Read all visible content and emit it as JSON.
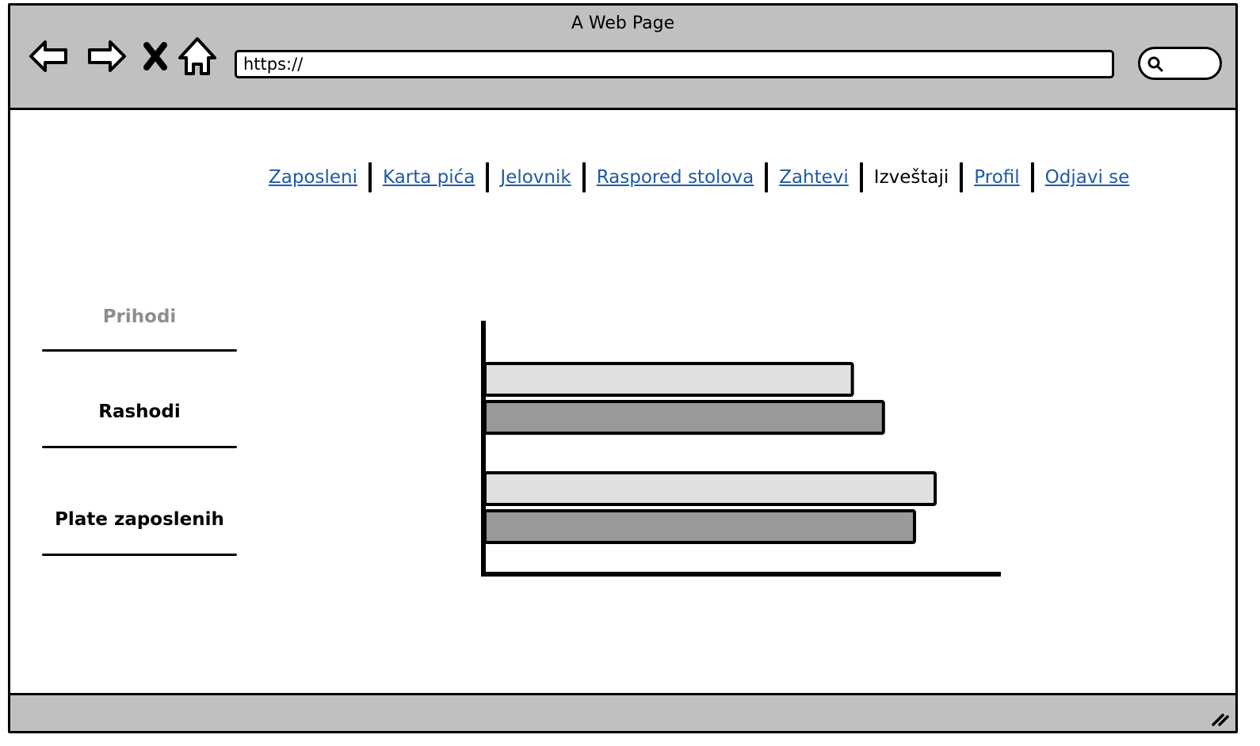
{
  "window": {
    "title": "A Web Page"
  },
  "toolbar": {
    "url": "https://",
    "icons": [
      "back-arrow-icon",
      "forward-arrow-icon",
      "close-x-icon",
      "home-icon",
      "search-icon"
    ]
  },
  "menu": {
    "items": [
      "Zaposleni",
      "Karta pića",
      "Jelovnik",
      "Raspored stolova",
      "Zahtevi",
      "Izveštaji",
      "Profil",
      "Odjavi se"
    ],
    "active": "Izveštaji"
  },
  "sidebar": {
    "items": [
      "Prihodi",
      "Rashodi",
      "Plate zaposlenih"
    ],
    "muted": "Prihodi"
  },
  "colors": {
    "link": "#1f5aa6",
    "bar_light": "#e0e0e0",
    "bar_dark": "#999999",
    "chrome": "#c0c0c0"
  },
  "chart_data": {
    "type": "bar",
    "orientation": "horizontal",
    "categories": [
      "",
      ""
    ],
    "series": [
      {
        "values": [
          71,
          87
        ]
      },
      {
        "values": [
          77,
          83
        ]
      }
    ],
    "xlim": [
      0,
      100
    ],
    "grid": false,
    "legend": "none"
  }
}
